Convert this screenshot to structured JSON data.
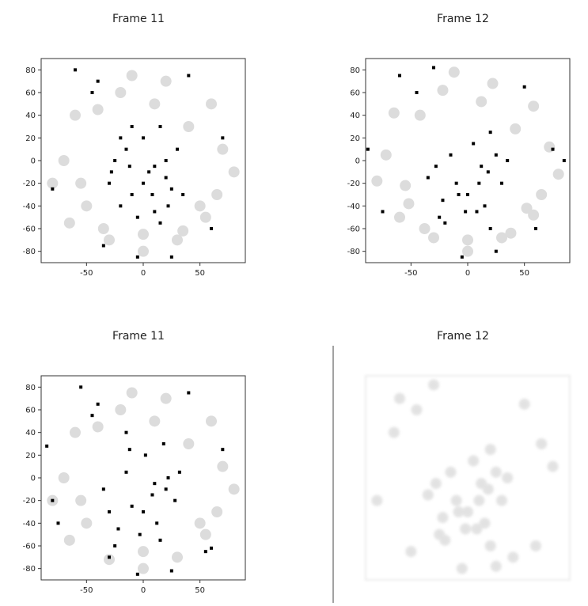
{
  "chart_data": [
    {
      "type": "scatter",
      "title": "Frame 11",
      "xlim": [
        -90,
        90
      ],
      "ylim": [
        -90,
        90
      ],
      "xticks": [
        -50,
        0,
        50
      ],
      "yticks": [
        -80,
        -60,
        -40,
        -20,
        0,
        20,
        40,
        60,
        80
      ],
      "series": [
        {
          "color": "#dcdcdc",
          "x": [
            -60,
            -70,
            -50,
            -30,
            0,
            30,
            50,
            70,
            60,
            -20,
            20,
            -80,
            80,
            -40,
            40,
            0,
            -55,
            55,
            -10,
            10,
            -65,
            65,
            -35,
            35
          ],
          "y": [
            40,
            0,
            -40,
            -70,
            -65,
            -70,
            -40,
            10,
            50,
            60,
            70,
            -20,
            -10,
            45,
            30,
            -80,
            -20,
            -50,
            75,
            50,
            -55,
            -30,
            -60,
            -62
          ]
        },
        {
          "color": "#000000",
          "x": [
            -30,
            -25,
            -20,
            -15,
            -10,
            -5,
            0,
            5,
            10,
            15,
            20,
            25,
            30,
            35,
            -20,
            0,
            20,
            -10,
            10,
            15,
            -40,
            -60,
            -45,
            -35,
            40,
            60,
            70,
            -80,
            -5,
            25,
            -28,
            8,
            22,
            -12
          ],
          "y": [
            -20,
            0,
            -40,
            10,
            -30,
            -50,
            20,
            -10,
            -45,
            30,
            0,
            -25,
            10,
            -30,
            20,
            -20,
            -15,
            30,
            -5,
            -55,
            70,
            80,
            60,
            -75,
            75,
            -60,
            20,
            -25,
            -85,
            -85,
            -10,
            -30,
            -40,
            -5
          ]
        }
      ]
    },
    {
      "type": "scatter",
      "title": "Frame 12",
      "xlim": [
        -90,
        90
      ],
      "ylim": [
        -90,
        90
      ],
      "xticks": [
        -50,
        0,
        50
      ],
      "yticks": [
        -80,
        -60,
        -40,
        -20,
        0,
        20,
        40,
        60,
        80
      ],
      "series": [
        {
          "color": "#dcdcdc",
          "x": [
            -65,
            -72,
            -52,
            -30,
            0,
            30,
            52,
            72,
            58,
            -22,
            22,
            -80,
            80,
            -42,
            42,
            0,
            -55,
            58,
            -12,
            12,
            -60,
            65,
            -38,
            38
          ],
          "y": [
            42,
            5,
            -38,
            -68,
            -70,
            -68,
            -42,
            12,
            48,
            62,
            68,
            -18,
            -12,
            40,
            28,
            -80,
            -22,
            -48,
            78,
            52,
            -50,
            -30,
            -60,
            -64
          ]
        },
        {
          "color": "#000000",
          "x": [
            -35,
            -28,
            -22,
            -15,
            -8,
            -2,
            5,
            10,
            15,
            20,
            25,
            30,
            35,
            -25,
            0,
            18,
            -10,
            12,
            20,
            -45,
            -60,
            -30,
            50,
            60,
            75,
            -88,
            -5,
            25,
            -75,
            85,
            -20,
            8
          ],
          "y": [
            -15,
            -5,
            -35,
            5,
            -30,
            -45,
            15,
            -20,
            -40,
            25,
            5,
            -20,
            0,
            -50,
            -30,
            -10,
            -20,
            -5,
            -60,
            60,
            75,
            82,
            65,
            -60,
            10,
            10,
            -85,
            -80,
            -45,
            0,
            -55,
            -45
          ]
        }
      ]
    },
    {
      "type": "scatter",
      "title": "Frame 11",
      "xlim": [
        -90,
        90
      ],
      "ylim": [
        -90,
        90
      ],
      "xticks": [
        -50,
        0,
        50
      ],
      "yticks": [
        -80,
        -60,
        -40,
        -20,
        0,
        20,
        40,
        60,
        80
      ],
      "series": [
        {
          "color": "#dcdcdc",
          "x": [
            -60,
            -70,
            -50,
            -30,
            0,
            30,
            50,
            70,
            60,
            -20,
            20,
            -80,
            80,
            -40,
            40,
            0,
            -55,
            55,
            -10,
            10,
            -65,
            65
          ],
          "y": [
            40,
            0,
            -40,
            -72,
            -65,
            -70,
            -40,
            10,
            50,
            60,
            70,
            -20,
            -10,
            45,
            30,
            -80,
            -20,
            -50,
            75,
            50,
            -55,
            -30
          ]
        },
        {
          "color": "#000000",
          "x": [
            -35,
            -30,
            -22,
            -15,
            -10,
            -3,
            2,
            8,
            12,
            18,
            22,
            28,
            32,
            -25,
            0,
            20,
            -12,
            10,
            15,
            -40,
            -55,
            -45,
            -30,
            40,
            55,
            70,
            -80,
            -5,
            25,
            -85,
            -75,
            60,
            -15
          ],
          "y": [
            -10,
            -30,
            -45,
            5,
            -25,
            -50,
            20,
            -15,
            -40,
            30,
            0,
            -20,
            5,
            -60,
            -30,
            -10,
            25,
            -5,
            -55,
            65,
            80,
            55,
            -70,
            75,
            -65,
            25,
            -20,
            -85,
            -82,
            28,
            -40,
            -62,
            40
          ]
        }
      ]
    },
    {
      "type": "scatter",
      "title": "Frame 12",
      "xlim": [
        -90,
        90
      ],
      "ylim": [
        -90,
        90
      ],
      "series": [
        {
          "color": "#cccccc",
          "x": [
            -35,
            -28,
            -22,
            -15,
            -8,
            -2,
            5,
            10,
            15,
            20,
            25,
            30,
            35,
            -25,
            0,
            18,
            -10,
            12,
            20,
            -45,
            -60,
            -30,
            50,
            60,
            75,
            -80,
            -5,
            25,
            -50,
            40,
            -20,
            8,
            -65,
            65
          ],
          "y": [
            -15,
            -5,
            -35,
            5,
            -30,
            -45,
            15,
            -20,
            -40,
            25,
            5,
            -20,
            0,
            -50,
            -30,
            -10,
            -20,
            -5,
            -60,
            60,
            70,
            82,
            65,
            -60,
            10,
            -20,
            -80,
            -78,
            -65,
            -70,
            -55,
            -45,
            40,
            30
          ]
        }
      ]
    }
  ]
}
